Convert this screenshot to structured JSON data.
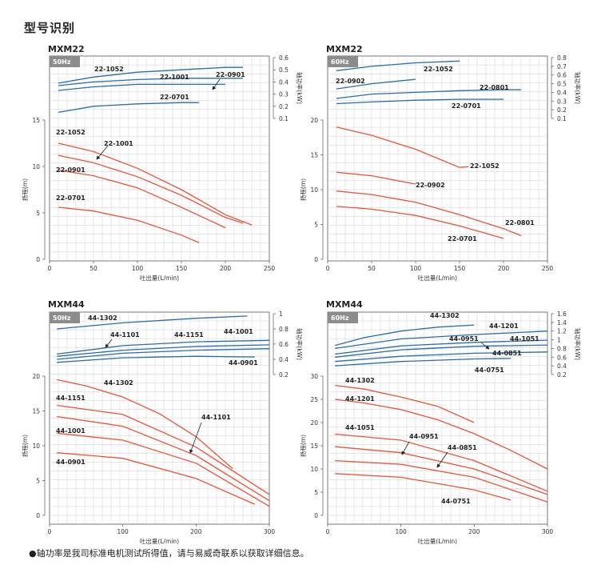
{
  "page": {
    "title": "型号识别",
    "footnote": "●轴功率是我司标准电机测试所得值，请与易威奇联系以获取详细信息。"
  },
  "colors": {
    "head": "#e8543a",
    "power": "#2a6cab",
    "grid": "#cfcfcf",
    "badge": "#8c8c8c",
    "border": "#555555"
  },
  "chart_data": [
    {
      "type": "line",
      "title": "MXM22",
      "badge": "50Hz",
      "xlabel": "吐出量(L/min)",
      "ylabel": "扬程(m)",
      "y2label": "轴功率(kW)",
      "xlim": [
        0,
        250
      ],
      "xticks": [
        0,
        50,
        100,
        150,
        200,
        250
      ],
      "ylim": [
        0,
        15
      ],
      "yticks": [
        0,
        5,
        10,
        15
      ],
      "y2lim": [
        0.1,
        0.6
      ],
      "y2ticks": [
        0.1,
        0.2,
        0.3,
        0.4,
        0.5,
        0.6
      ],
      "head_series": [
        {
          "name": "22-1052",
          "x": [
            10,
            50,
            100,
            150,
            200,
            230
          ],
          "y": [
            12.5,
            11.6,
            9.8,
            7.5,
            4.8,
            3.7
          ]
        },
        {
          "name": "22-1001",
          "x": [
            10,
            50,
            100,
            150,
            200,
            220
          ],
          "y": [
            11.2,
            10.4,
            8.9,
            6.9,
            4.5,
            3.9
          ]
        },
        {
          "name": "22-0901",
          "x": [
            10,
            50,
            100,
            150,
            200
          ],
          "y": [
            9.6,
            9.0,
            7.7,
            5.6,
            3.4
          ]
        },
        {
          "name": "22-0701",
          "x": [
            10,
            50,
            100,
            150,
            170
          ],
          "y": [
            5.6,
            5.2,
            4.2,
            2.6,
            1.8
          ]
        }
      ],
      "power_series": [
        {
          "name": "22-1052",
          "x": [
            10,
            50,
            100,
            150,
            200,
            220
          ],
          "y": [
            0.39,
            0.44,
            0.48,
            0.5,
            0.52,
            0.52
          ]
        },
        {
          "name": "22-1001",
          "x": [
            10,
            50,
            100,
            150,
            200,
            220
          ],
          "y": [
            0.37,
            0.4,
            0.42,
            0.43,
            0.43,
            0.43
          ]
        },
        {
          "name": "22-0901",
          "x": [
            10,
            50,
            100,
            150,
            200
          ],
          "y": [
            0.33,
            0.36,
            0.38,
            0.38,
            0.38
          ]
        },
        {
          "name": "22-0701",
          "x": [
            10,
            50,
            100,
            150,
            170
          ],
          "y": [
            0.15,
            0.2,
            0.22,
            0.23,
            0.23
          ]
        }
      ],
      "labels": [
        {
          "text": "22-1052",
          "group": "power"
        },
        {
          "text": "22-1001",
          "group": "power"
        },
        {
          "text": "22-0901",
          "group": "power"
        },
        {
          "text": "22-0701",
          "group": "power"
        },
        {
          "text": "22-1052",
          "group": "head"
        },
        {
          "text": "22-1001",
          "group": "head"
        },
        {
          "text": "22-0901",
          "group": "head"
        },
        {
          "text": "22-0701",
          "group": "head"
        }
      ]
    },
    {
      "type": "line",
      "title": "MXM22",
      "badge": "60Hz",
      "xlabel": "吐出量(L/min)",
      "ylabel": "扬程(m)",
      "y2label": "轴功率(kW)",
      "xlim": [
        0,
        250
      ],
      "xticks": [
        0,
        50,
        100,
        150,
        200,
        250
      ],
      "ylim": [
        0,
        20
      ],
      "yticks": [
        0,
        5,
        10,
        15,
        20
      ],
      "y2lim": [
        0.1,
        0.8
      ],
      "y2ticks": [
        0.1,
        0.2,
        0.3,
        0.4,
        0.5,
        0.6,
        0.7,
        0.8
      ],
      "head_series": [
        {
          "name": "22-1052",
          "x": [
            10,
            50,
            100,
            150,
            160
          ],
          "y": [
            19.0,
            17.8,
            15.8,
            13.2,
            13.3
          ]
        },
        {
          "name": "22-0902",
          "x": [
            10,
            50,
            100
          ],
          "y": [
            12.5,
            12.0,
            10.8
          ]
        },
        {
          "name": "22-0801",
          "x": [
            10,
            50,
            100,
            150,
            200,
            220
          ],
          "y": [
            9.8,
            9.3,
            8.2,
            6.4,
            4.4,
            3.4
          ]
        },
        {
          "name": "22-0701",
          "x": [
            10,
            50,
            100,
            150,
            200
          ],
          "y": [
            7.6,
            7.2,
            6.3,
            4.8,
            3.0
          ]
        }
      ],
      "power_series": [
        {
          "name": "22-1052",
          "x": [
            10,
            50,
            100,
            150
          ],
          "y": [
            0.65,
            0.7,
            0.74,
            0.76
          ]
        },
        {
          "name": "22-0902",
          "x": [
            10,
            50,
            100
          ],
          "y": [
            0.44,
            0.5,
            0.55
          ]
        },
        {
          "name": "22-0801",
          "x": [
            10,
            50,
            100,
            150,
            200,
            220
          ],
          "y": [
            0.33,
            0.38,
            0.4,
            0.42,
            0.43,
            0.43
          ]
        },
        {
          "name": "22-0701",
          "x": [
            10,
            50,
            100,
            150,
            200
          ],
          "y": [
            0.27,
            0.29,
            0.31,
            0.32,
            0.32
          ]
        }
      ],
      "labels": [
        {
          "text": "22-1052",
          "group": "power"
        },
        {
          "text": "22-0902",
          "group": "power"
        },
        {
          "text": "22-0801",
          "group": "power"
        },
        {
          "text": "22-0701",
          "group": "power"
        },
        {
          "text": "22-1052",
          "group": "head"
        },
        {
          "text": "22-0902",
          "group": "head"
        },
        {
          "text": "22-0801",
          "group": "head"
        },
        {
          "text": "22-0701",
          "group": "head"
        }
      ]
    },
    {
      "type": "line",
      "title": "MXM44",
      "badge": "50Hz",
      "xlabel": "吐出量(L/min)",
      "ylabel": "扬程(m)",
      "y2label": "轴功率(kW)",
      "xlim": [
        0,
        300
      ],
      "xticks": [
        0,
        100,
        200,
        300
      ],
      "ylim": [
        0,
        20
      ],
      "yticks": [
        0,
        5,
        10,
        15,
        20
      ],
      "y2lim": [
        0.2,
        1.0
      ],
      "y2ticks": [
        0.2,
        0.4,
        0.6,
        0.8,
        1.0
      ],
      "head_series": [
        {
          "name": "44-1302",
          "x": [
            10,
            50,
            100,
            150,
            200,
            250
          ],
          "y": [
            19.5,
            18.6,
            17.0,
            14.6,
            11.3,
            6.7
          ]
        },
        {
          "name": "44-1151",
          "x": [
            10,
            100,
            200,
            300
          ],
          "y": [
            15.8,
            14.5,
            9.8,
            3.0
          ]
        },
        {
          "name": "44-1101",
          "x": [
            10,
            100,
            200,
            300
          ],
          "y": [
            14.2,
            12.8,
            8.6,
            2.1
          ]
        },
        {
          "name": "44-1001",
          "x": [
            10,
            100,
            200,
            300
          ],
          "y": [
            11.8,
            10.8,
            7.5,
            1.3
          ]
        },
        {
          "name": "44-0901",
          "x": [
            10,
            100,
            200,
            280
          ],
          "y": [
            9.0,
            8.2,
            5.3,
            1.6
          ]
        }
      ],
      "power_series": [
        {
          "name": "44-1302",
          "x": [
            10,
            100,
            200,
            270
          ],
          "y": [
            0.8,
            0.88,
            0.94,
            0.97
          ]
        },
        {
          "name": "44-1101",
          "x": [
            10,
            100,
            200,
            300
          ],
          "y": [
            0.47,
            0.58,
            0.63,
            0.65
          ]
        },
        {
          "name": "44-1151",
          "x": [
            10,
            100,
            200,
            300
          ],
          "y": [
            0.44,
            0.52,
            0.57,
            0.59
          ]
        },
        {
          "name": "44-1001",
          "x": [
            10,
            100,
            200,
            300
          ],
          "y": [
            0.4,
            0.48,
            0.52,
            0.54
          ]
        },
        {
          "name": "44-0901",
          "x": [
            10,
            100,
            200,
            280
          ],
          "y": [
            0.36,
            0.42,
            0.44,
            0.43
          ]
        }
      ],
      "labels": [
        {
          "text": "44-1302",
          "group": "power"
        },
        {
          "text": "44-1101",
          "group": "power"
        },
        {
          "text": "44-1151",
          "group": "power"
        },
        {
          "text": "44-1001",
          "group": "power"
        },
        {
          "text": "44-0901",
          "group": "power"
        },
        {
          "text": "44-1302",
          "group": "head"
        },
        {
          "text": "44-1151",
          "group": "head"
        },
        {
          "text": "44-1101",
          "group": "head"
        },
        {
          "text": "44-1001",
          "group": "head"
        },
        {
          "text": "44-0901",
          "group": "head"
        }
      ]
    },
    {
      "type": "line",
      "title": "MXM44",
      "badge": "60Hz",
      "xlabel": "吐出量(L/min)",
      "ylabel": "扬程(m)",
      "y2label": "轴功率(kW)",
      "xlim": [
        0,
        300
      ],
      "xticks": [
        0,
        100,
        200,
        300
      ],
      "ylim": [
        0,
        30
      ],
      "yticks": [
        0,
        5,
        10,
        15,
        20,
        25,
        30
      ],
      "y2lim": [
        0.2,
        1.6
      ],
      "y2ticks": [
        0.2,
        0.4,
        0.6,
        0.8,
        1.0,
        1.2,
        1.4,
        1.6
      ],
      "head_series": [
        {
          "name": "44-1302",
          "x": [
            10,
            50,
            100,
            150,
            200
          ],
          "y": [
            28.0,
            27.2,
            25.5,
            23.5,
            20.0
          ]
        },
        {
          "name": "44-1201",
          "x": [
            10,
            50,
            100,
            150,
            200,
            250,
            300
          ],
          "y": [
            25.0,
            24.2,
            22.8,
            20.6,
            17.6,
            14.0,
            10.0
          ]
        },
        {
          "name": "44-1051",
          "x": [
            10,
            100,
            200,
            300
          ],
          "y": [
            17.5,
            16.2,
            11.8,
            5.2
          ]
        },
        {
          "name": "44-0951",
          "x": [
            10,
            100,
            200,
            300
          ],
          "y": [
            14.8,
            13.5,
            10.0,
            4.5
          ]
        },
        {
          "name": "44-0851",
          "x": [
            10,
            100,
            200,
            300
          ],
          "y": [
            11.8,
            11.0,
            8.2,
            2.9
          ]
        },
        {
          "name": "44-0751",
          "x": [
            10,
            100,
            200,
            250
          ],
          "y": [
            9.0,
            8.2,
            5.5,
            3.3
          ]
        }
      ],
      "power_series": [
        {
          "name": "44-1302",
          "x": [
            10,
            50,
            100,
            150,
            200
          ],
          "y": [
            0.87,
            1.05,
            1.2,
            1.29,
            1.34
          ]
        },
        {
          "name": "44-1201",
          "x": [
            10,
            100,
            200,
            300
          ],
          "y": [
            0.8,
            1.02,
            1.12,
            1.2
          ]
        },
        {
          "name": "44-0951",
          "x": [
            10,
            100,
            200,
            300
          ],
          "y": [
            0.67,
            0.86,
            0.94,
            0.99
          ]
        },
        {
          "name": "44-1051",
          "x": [
            10,
            100,
            200,
            300
          ],
          "y": [
            0.6,
            0.77,
            0.85,
            0.88
          ]
        },
        {
          "name": "44-0851",
          "x": [
            10,
            100,
            200,
            300
          ],
          "y": [
            0.5,
            0.62,
            0.69,
            0.72
          ]
        },
        {
          "name": "44-0751",
          "x": [
            10,
            100,
            200,
            250
          ],
          "y": [
            0.4,
            0.5,
            0.56,
            0.57
          ]
        }
      ],
      "labels": [
        {
          "text": "44-1302",
          "group": "power"
        },
        {
          "text": "44-1201",
          "group": "power"
        },
        {
          "text": "44-0951",
          "group": "power"
        },
        {
          "text": "44-1051",
          "group": "power"
        },
        {
          "text": "44-0851",
          "group": "power"
        },
        {
          "text": "44-0751",
          "group": "power"
        },
        {
          "text": "44-1302",
          "group": "head"
        },
        {
          "text": "44-1201",
          "group": "head"
        },
        {
          "text": "44-1051",
          "group": "head"
        },
        {
          "text": "44-0951",
          "group": "head"
        },
        {
          "text": "44-0851",
          "group": "head"
        },
        {
          "text": "44-0751",
          "group": "head"
        }
      ]
    }
  ]
}
